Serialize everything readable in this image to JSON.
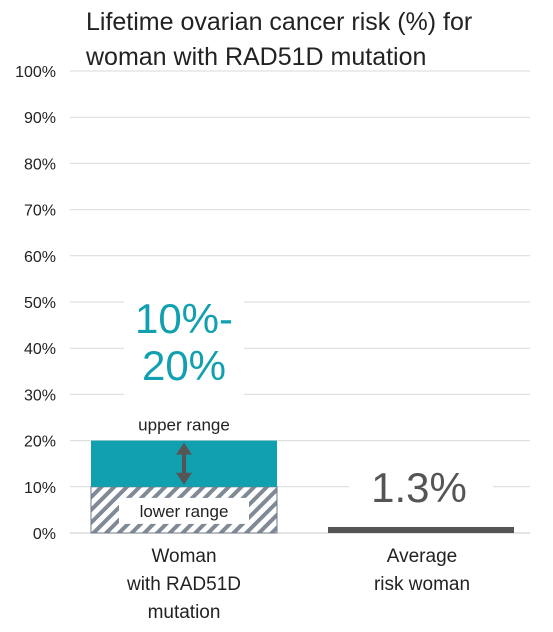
{
  "chart_data": {
    "type": "bar",
    "title_lines": [
      "Lifetime ovarian cancer risk (%) for",
      "woman with RAD51D mutation"
    ],
    "ylim": [
      0,
      100
    ],
    "y_ticks": [
      "0%",
      "10%",
      "20%",
      "30%",
      "40%",
      "50%",
      "60%",
      "70%",
      "80%",
      "90%",
      "100%"
    ],
    "grid": true,
    "categories": [
      {
        "lines": [
          "Woman",
          "with RAD51D",
          "mutation"
        ]
      },
      {
        "lines": [
          "Average",
          "risk woman"
        ]
      }
    ],
    "bars": [
      {
        "category_index": 0,
        "kind": "range",
        "lower": 10,
        "upper": 20,
        "value_label_lines": [
          "10%-",
          "20%"
        ],
        "upper_range_label": "upper range",
        "lower_range_label": "lower range"
      },
      {
        "category_index": 1,
        "kind": "single",
        "value": 1.3,
        "value_label": "1.3%"
      }
    ],
    "colors": {
      "range_upper": "#10a0b0",
      "hatch": "#7f8a96",
      "average": "#555555",
      "value_label_accent": "#10a0b0",
      "arrow": "#555555",
      "grid": "#d9d9d9"
    }
  }
}
